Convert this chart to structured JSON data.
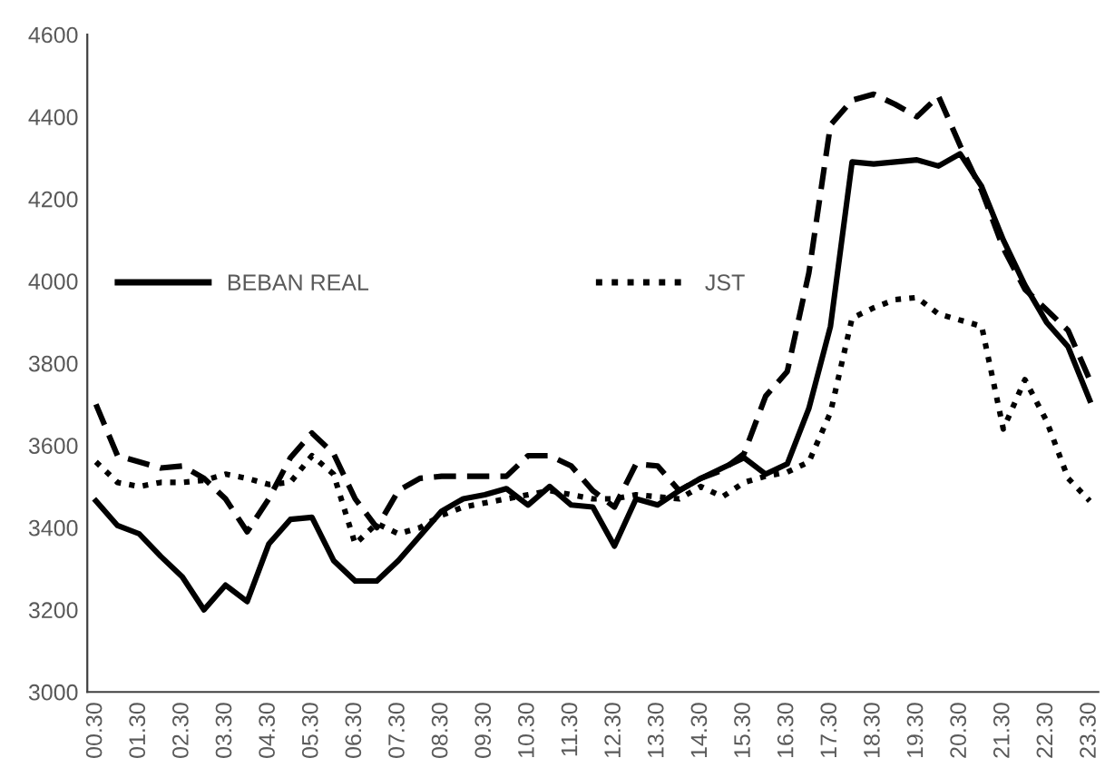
{
  "chart_data": {
    "type": "line",
    "categories": [
      "00.30",
      null,
      "01.30",
      null,
      "02.30",
      null,
      "03.30",
      null,
      "04.30",
      null,
      "05.30",
      null,
      "06.30",
      null,
      "07.30",
      null,
      "08.30",
      null,
      "09.30",
      null,
      "10.30",
      null,
      "11.30",
      null,
      "12.30",
      null,
      "13.30",
      null,
      "14.30",
      null,
      "15.30",
      null,
      "16.30",
      null,
      "17.30",
      null,
      "18.30",
      null,
      "19.30",
      null,
      "20.30",
      null,
      "21.30",
      null,
      "22.30",
      null,
      "23.30"
    ],
    "series": [
      {
        "name": "BEBAN REAL",
        "color": "#000000",
        "line_style": "solid",
        "values": [
          3465,
          3405,
          3385,
          3330,
          3280,
          3200,
          3260,
          3220,
          3360,
          3420,
          3425,
          3320,
          3270,
          3270,
          3320,
          3380,
          3440,
          3470,
          3480,
          3495,
          3455,
          3500,
          3455,
          3450,
          3355,
          3470,
          3455,
          3490,
          3520,
          3545,
          3570,
          3530,
          3555,
          3690,
          3890,
          4290,
          4285,
          4290,
          4295,
          4280,
          4310,
          4230,
          4100,
          3990,
          3900,
          3840,
          3710
        ]
      },
      {
        "color": "#000000",
        "line_style": "dashed",
        "values": [
          3700,
          3575,
          3560,
          3545,
          3550,
          3520,
          3470,
          3390,
          3470,
          3570,
          3630,
          3580,
          3470,
          3400,
          3490,
          3520,
          3525,
          3525,
          3525,
          3525,
          3575,
          3575,
          3550,
          3490,
          3450,
          3555,
          3550,
          3490,
          3520,
          3540,
          3580,
          3720,
          3780,
          4020,
          4380,
          4440,
          4455,
          4430,
          4400,
          4450,
          4330,
          4220,
          4080,
          3980,
          3930,
          3880,
          3760
        ]
      },
      {
        "name": "JST",
        "color": "#000000",
        "line_style": "dotted",
        "values": [
          3560,
          3510,
          3500,
          3510,
          3510,
          3515,
          3530,
          3520,
          3505,
          3510,
          3575,
          3530,
          3360,
          3410,
          3385,
          3400,
          3430,
          3450,
          3460,
          3470,
          3480,
          3490,
          3480,
          3470,
          3470,
          3480,
          3475,
          3470,
          3500,
          3475,
          3510,
          3525,
          3535,
          3560,
          3680,
          3910,
          3935,
          3955,
          3960,
          3920,
          3905,
          3890,
          3640,
          3760,
          3660,
          3520,
          3465
        ]
      }
    ],
    "ylim": [
      3000,
      4600
    ],
    "yticks": [
      3000,
      3200,
      3400,
      3600,
      3800,
      4000,
      4200,
      4400,
      4600
    ],
    "grid": false,
    "legend": "left"
  }
}
